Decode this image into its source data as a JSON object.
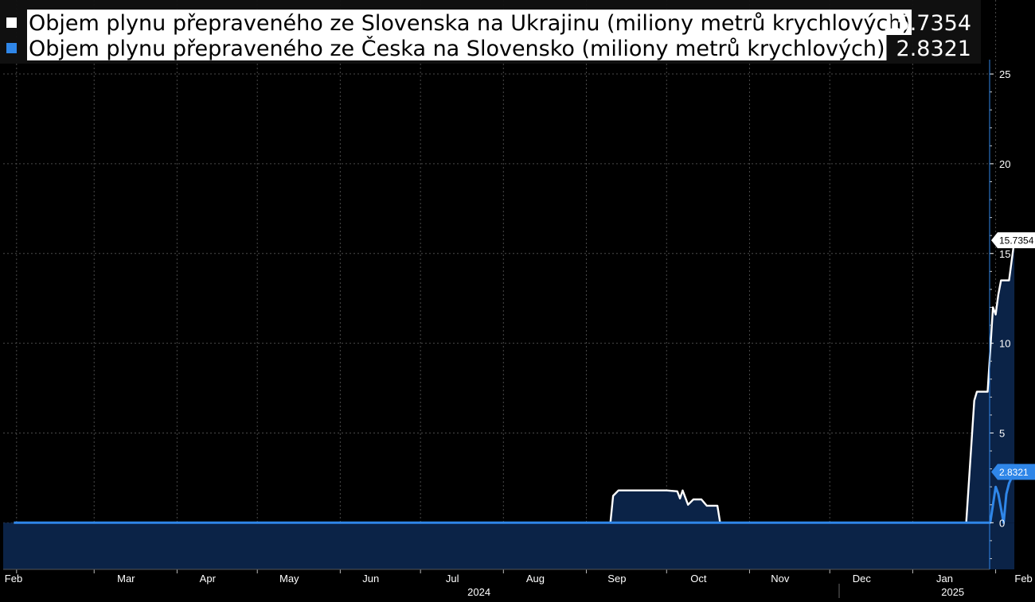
{
  "chart_data": {
    "type": "area",
    "x_label_unit": "day",
    "ylim": [
      -2.6,
      25.8
    ],
    "y_ticks": [
      0,
      5,
      10,
      15,
      20,
      25
    ],
    "y_tick_labels": [
      "0",
      "5",
      "10",
      "15",
      "20",
      "25"
    ],
    "x_month_labels": [
      "Feb",
      "Mar",
      "Apr",
      "May",
      "Jun",
      "Jul",
      "Aug",
      "Sep",
      "Oct",
      "Nov",
      "Dec",
      "Jan",
      "Feb"
    ],
    "x_year_labels": [
      "2024",
      "2025"
    ],
    "grid": true,
    "legend_position": "top-left",
    "series": [
      {
        "name": "Objem plynu přepraveného ze Slovenska na Ukrajinu (miliony metrů krychlových)",
        "last_value": "15.7354",
        "color": "#ffffff",
        "points": [
          [
            "2024-01-31",
            0
          ],
          [
            "2024-09-10",
            0
          ],
          [
            "2024-09-11",
            1.5
          ],
          [
            "2024-09-13",
            1.8
          ],
          [
            "2024-10-01",
            1.8
          ],
          [
            "2024-10-05",
            1.75
          ],
          [
            "2024-10-06",
            1.35
          ],
          [
            "2024-10-07",
            1.8
          ],
          [
            "2024-10-09",
            1.0
          ],
          [
            "2024-10-11",
            1.3
          ],
          [
            "2024-10-14",
            1.3
          ],
          [
            "2024-10-16",
            0.95
          ],
          [
            "2024-10-20",
            0.95
          ],
          [
            "2024-10-21",
            0
          ],
          [
            "2025-01-21",
            0
          ],
          [
            "2025-01-24",
            6.8
          ],
          [
            "2025-01-25",
            7.3
          ],
          [
            "2025-01-29",
            7.3
          ],
          [
            "2025-01-31",
            12.0
          ],
          [
            "2025-02-01",
            11.6
          ],
          [
            "2025-02-02",
            12.7
          ],
          [
            "2025-02-03",
            13.5
          ],
          [
            "2025-02-06",
            13.5
          ],
          [
            "2025-02-08",
            15.7354
          ]
        ]
      },
      {
        "name": "Objem plynu přepraveného ze Česka na Slovensko (miliony metrů krychlových)",
        "last_value": "2.8321",
        "color": "#2f86e8",
        "points": [
          [
            "2024-01-31",
            0
          ],
          [
            "2025-01-30",
            0
          ],
          [
            "2025-02-01",
            2.0
          ],
          [
            "2025-02-02",
            1.6
          ],
          [
            "2025-02-04",
            0
          ],
          [
            "2025-02-05",
            1.6
          ],
          [
            "2025-02-06",
            2.2
          ],
          [
            "2025-02-08",
            2.8321
          ]
        ]
      }
    ]
  }
}
